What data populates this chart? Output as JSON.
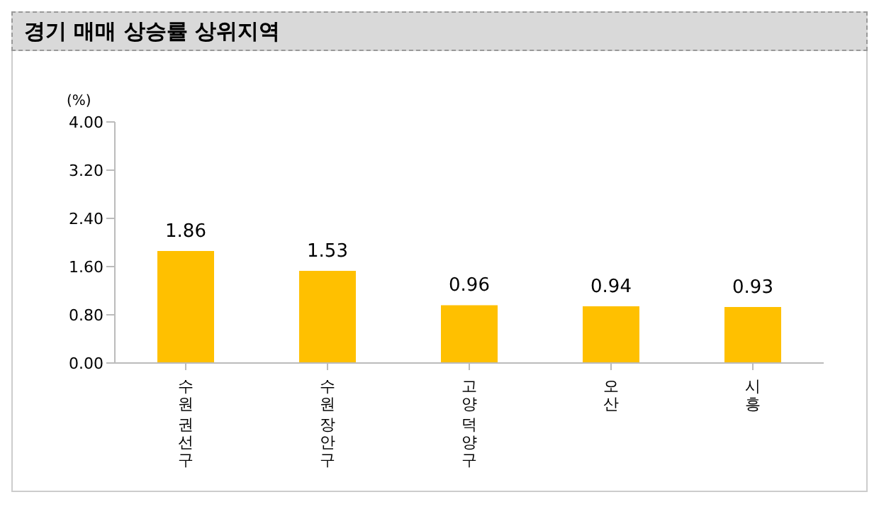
{
  "chart_data": {
    "type": "bar",
    "title": "경기 매매 상승률 상위지역",
    "ylabel": "(%)",
    "categories": [
      "수원 권선구",
      "수원 장안구",
      "고양 덕양구",
      "오산",
      "시흥"
    ],
    "values": [
      1.86,
      1.53,
      0.96,
      0.94,
      0.93
    ],
    "color": "#ffc000",
    "ylim": [
      0,
      4
    ],
    "yticks": [
      {
        "value": 0,
        "label": "0.00"
      },
      {
        "value": 0.8,
        "label": "0.80"
      },
      {
        "value": 1.6,
        "label": "1.60"
      },
      {
        "value": 2.4,
        "label": "2.40"
      },
      {
        "value": 3.2,
        "label": "3.20"
      },
      {
        "value": 4,
        "label": "4.00"
      }
    ],
    "data_labels": true,
    "grid": false,
    "legend": false
  }
}
